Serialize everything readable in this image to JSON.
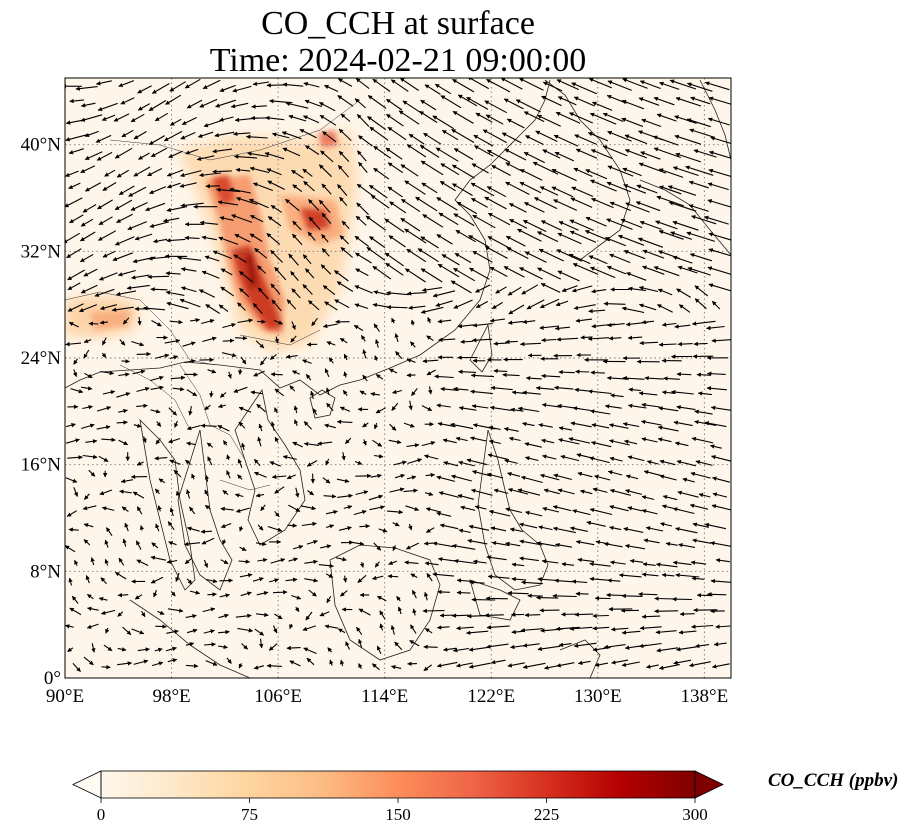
{
  "figure": {
    "title_line1": "CO_CCH at surface",
    "title_line2": "Time: 2024-02-21 09:00:00"
  },
  "map": {
    "variable": "CO_CCH",
    "level": "surface",
    "projection": "PlateCarree",
    "lon_range": [
      90,
      140
    ],
    "lat_range": [
      0,
      45
    ],
    "gridlines": "dotted grey",
    "lon_ticks": [
      "90°E",
      "98°E",
      "106°E",
      "114°E",
      "122°E",
      "130°E",
      "138°E"
    ],
    "lat_ticks": [
      "0°",
      "8°N",
      "16°N",
      "24°N",
      "32°N",
      "40°N"
    ],
    "overlay": "wind vectors (black arrows)",
    "features": [
      "coastlines",
      "country borders"
    ]
  },
  "colorbar": {
    "label": "CO_CCH (ppbv)",
    "colormap": "OrRd",
    "ticks": [
      "0",
      "75",
      "150",
      "225",
      "300"
    ],
    "min": 0,
    "max": 300,
    "extend": "both",
    "colors": [
      "#fff7ec",
      "#fee8c8",
      "#fdd49e",
      "#fdbb84",
      "#fc8d59",
      "#ef6548",
      "#d7301f",
      "#b30000",
      "#7f0000"
    ]
  },
  "plumes": [
    {
      "region": "central China (Sichuan basin / Chongqing)",
      "level": "high"
    },
    {
      "region": "north-central China",
      "level": "moderate"
    },
    {
      "region": "Bangladesh / NE India",
      "level": "moderate"
    }
  ]
}
